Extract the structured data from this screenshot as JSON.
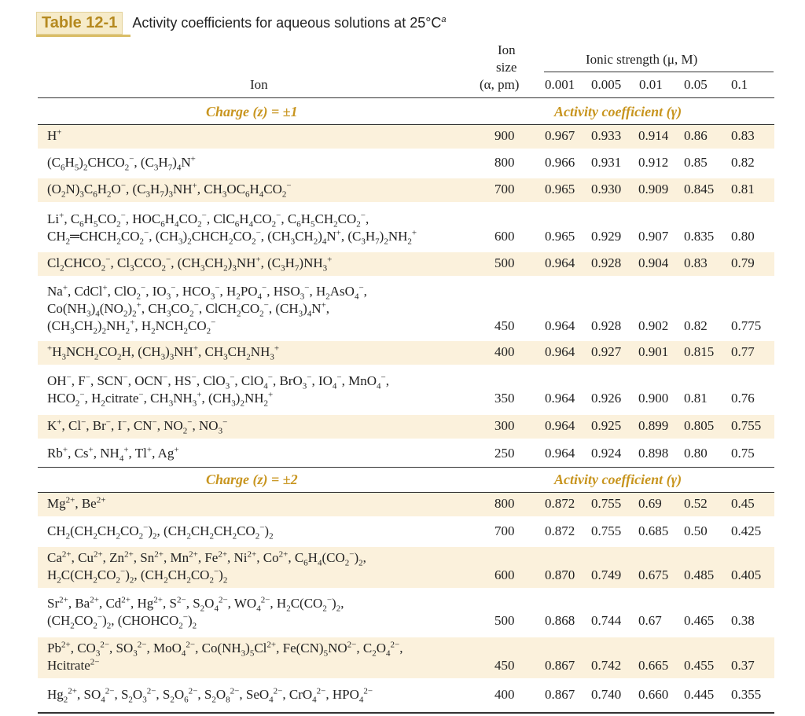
{
  "title": {
    "tag": "Table 12-1",
    "text": "Activity coefficients for aqueous solutions at 25°C",
    "footnote_mark": "a"
  },
  "header": {
    "ion_col": "Ion",
    "size_col_line1": "Ion",
    "size_col_line2": "size",
    "size_col_line3": "(α, pm)",
    "ionic_strength": "Ionic strength (μ, M)",
    "strengths": [
      "0.001",
      "0.005",
      "0.01",
      "0.05",
      "0.1"
    ]
  },
  "groups": [
    {
      "charge_label": "Charge (z) = ±1",
      "coef_label": "Activity coefficient (γ)",
      "rows": [
        {
          "ion_html": "H<sup>+</sup>",
          "size": "900",
          "values": [
            "0.967",
            "0.933",
            "0.914",
            "0.86",
            "0.83"
          ]
        },
        {
          "ion_html": "(C<sub>6</sub>H<sub>5</sub>)<sub>2</sub>CHCO<sub>2</sub><sup>−</sup>, (C<sub>3</sub>H<sub>7</sub>)<sub>4</sub>N<sup>+</sup>",
          "size": "800",
          "values": [
            "0.966",
            "0.931",
            "0.912",
            "0.85",
            "0.82"
          ]
        },
        {
          "ion_html": "(O<sub>2</sub>N)<sub>3</sub>C<sub>6</sub>H<sub>2</sub>O<sup>−</sup>, (C<sub>3</sub>H<sub>7</sub>)<sub>3</sub>NH<sup>+</sup>, CH<sub>3</sub>OC<sub>6</sub>H<sub>4</sub>CO<sub>2</sub><sup>−</sup>",
          "size": "700",
          "values": [
            "0.965",
            "0.930",
            "0.909",
            "0.845",
            "0.81"
          ]
        },
        {
          "ion_html": "Li<sup>+</sup>, C<sub>6</sub>H<sub>5</sub>CO<sub>2</sub><sup>−</sup>, HOC<sub>6</sub>H<sub>4</sub>CO<sub>2</sub><sup>−</sup>, ClC<sub>6</sub>H<sub>4</sub>CO<sub>2</sub><sup>−</sup>, C<sub>6</sub>H<sub>5</sub>CH<sub>2</sub>CO<sub>2</sub><sup>−</sup>,<br>CH<sub>2</sub>═CHCH<sub>2</sub>CO<sub>2</sub><sup>−</sup>, (CH<sub>3</sub>)<sub>2</sub>CHCH<sub>2</sub>CO<sub>2</sub><sup>−</sup>, (CH<sub>3</sub>CH<sub>2</sub>)<sub>4</sub>N<sup>+</sup>, (C<sub>3</sub>H<sub>7</sub>)<sub>2</sub>NH<sub>2</sub><sup>+</sup>",
          "size": "600",
          "values": [
            "0.965",
            "0.929",
            "0.907",
            "0.835",
            "0.80"
          ]
        },
        {
          "ion_html": "Cl<sub>2</sub>CHCO<sub>2</sub><sup>−</sup>, Cl<sub>3</sub>CCO<sub>2</sub><sup>−</sup>, (CH<sub>3</sub>CH<sub>2</sub>)<sub>3</sub>NH<sup>+</sup>, (C<sub>3</sub>H<sub>7</sub>)NH<sub>3</sub><sup>+</sup>",
          "size": "500",
          "values": [
            "0.964",
            "0.928",
            "0.904",
            "0.83",
            "0.79"
          ]
        },
        {
          "ion_html": "Na<sup>+</sup>, CdCl<sup>+</sup>, ClO<sub>2</sub><sup>−</sup>, IO<sub>3</sub><sup>−</sup>, HCO<sub>3</sub><sup>−</sup>, H<sub>2</sub>PO<sub>4</sub><sup>−</sup>, HSO<sub>3</sub><sup>−</sup>, H<sub>2</sub>AsO<sub>4</sub><sup>−</sup>,<br>Co(NH<sub>3</sub>)<sub>4</sub>(NO<sub>2</sub>)<sub>2</sub><sup>+</sup>, CH<sub>3</sub>CO<sub>2</sub><sup>−</sup>, ClCH<sub>2</sub>CO<sub>2</sub><sup>−</sup>, (CH<sub>3</sub>)<sub>4</sub>N<sup>+</sup>,<br>(CH<sub>3</sub>CH<sub>2</sub>)<sub>2</sub>NH<sub>2</sub><sup>+</sup>, H<sub>2</sub>NCH<sub>2</sub>CO<sub>2</sub><sup>−</sup>",
          "size": "450",
          "values": [
            "0.964",
            "0.928",
            "0.902",
            "0.82",
            "0.775"
          ]
        },
        {
          "ion_html": "<sup>+</sup>H<sub>3</sub>NCH<sub>2</sub>CO<sub>2</sub>H, (CH<sub>3</sub>)<sub>3</sub>NH<sup>+</sup>, CH<sub>3</sub>CH<sub>2</sub>NH<sub>3</sub><sup>+</sup>",
          "size": "400",
          "values": [
            "0.964",
            "0.927",
            "0.901",
            "0.815",
            "0.77"
          ]
        },
        {
          "ion_html": "OH<sup>−</sup>, F<sup>−</sup>, SCN<sup>−</sup>, OCN<sup>−</sup>, HS<sup>−</sup>, ClO<sub>3</sub><sup>−</sup>, ClO<sub>4</sub><sup>−</sup>, BrO<sub>3</sub><sup>−</sup>, IO<sub>4</sub><sup>−</sup>, MnO<sub>4</sub><sup>−</sup>,<br>HCO<sub>2</sub><sup>−</sup>, H<sub>2</sub>citrate<sup>−</sup>, CH<sub>3</sub>NH<sub>3</sub><sup>+</sup>, (CH<sub>3</sub>)<sub>2</sub>NH<sub>2</sub><sup>+</sup>",
          "size": "350",
          "values": [
            "0.964",
            "0.926",
            "0.900",
            "0.81",
            "0.76"
          ]
        },
        {
          "ion_html": "K<sup>+</sup>, Cl<sup>−</sup>, Br<sup>−</sup>, I<sup>−</sup>, CN<sup>−</sup>, NO<sub>2</sub><sup>−</sup>, NO<sub>3</sub><sup>−</sup>",
          "size": "300",
          "values": [
            "0.964",
            "0.925",
            "0.899",
            "0.805",
            "0.755"
          ]
        },
        {
          "ion_html": "Rb<sup>+</sup>, Cs<sup>+</sup>, NH<sub>4</sub><sup>+</sup>, Tl<sup>+</sup>, Ag<sup>+</sup>",
          "size": "250",
          "values": [
            "0.964",
            "0.924",
            "0.898",
            "0.80",
            "0.75"
          ]
        }
      ]
    },
    {
      "charge_label": "Charge (z) = ±2",
      "coef_label": "Activity coefficient (γ)",
      "rows": [
        {
          "ion_html": "Mg<sup>2+</sup>, Be<sup>2+</sup>",
          "size": "800",
          "values": [
            "0.872",
            "0.755",
            "0.69",
            "0.52",
            "0.45"
          ]
        },
        {
          "ion_html": "CH<sub>2</sub>(CH<sub>2</sub>CH<sub>2</sub>CO<sub>2</sub><sup>−</sup>)<sub>2</sub>, (CH<sub>2</sub>CH<sub>2</sub>CH<sub>2</sub>CO<sub>2</sub><sup>−</sup>)<sub>2</sub>",
          "size": "700",
          "values": [
            "0.872",
            "0.755",
            "0.685",
            "0.50",
            "0.425"
          ]
        },
        {
          "ion_html": "Ca<sup>2+</sup>, Cu<sup>2+</sup>, Zn<sup>2+</sup>, Sn<sup>2+</sup>, Mn<sup>2+</sup>, Fe<sup>2+</sup>, Ni<sup>2+</sup>, Co<sup>2+</sup>, C<sub>6</sub>H<sub>4</sub>(CO<sub>2</sub><sup>−</sup>)<sub>2</sub>,<br>H<sub>2</sub>C(CH<sub>2</sub>CO<sub>2</sub><sup>−</sup>)<sub>2</sub>, (CH<sub>2</sub>CH<sub>2</sub>CO<sub>2</sub><sup>−</sup>)<sub>2</sub>",
          "size": "600",
          "values": [
            "0.870",
            "0.749",
            "0.675",
            "0.485",
            "0.405"
          ]
        },
        {
          "ion_html": "Sr<sup>2+</sup>, Ba<sup>2+</sup>, Cd<sup>2+</sup>, Hg<sup>2+</sup>, S<sup>2−</sup>, S<sub>2</sub>O<sub>4</sub><sup>2−</sup>, WO<sub>4</sub><sup>2−</sup>, H<sub>2</sub>C(CO<sub>2</sub><sup>−</sup>)<sub>2</sub>,<br>(CH<sub>2</sub>CO<sub>2</sub><sup>−</sup>)<sub>2</sub>, (CHOHCO<sub>2</sub><sup>−</sup>)<sub>2</sub>",
          "size": "500",
          "values": [
            "0.868",
            "0.744",
            "0.67",
            "0.465",
            "0.38"
          ]
        },
        {
          "ion_html": "Pb<sup>2+</sup>, CO<sub>3</sub><sup>2−</sup>, SO<sub>3</sub><sup>2−</sup>, MoO<sub>4</sub><sup>2−</sup>, Co(NH<sub>3</sub>)<sub>5</sub>Cl<sup>2+</sup>, Fe(CN)<sub>5</sub>NO<sup>2−</sup>, C<sub>2</sub>O<sub>4</sub><sup>2−</sup>,<br>Hcitrate<sup>2−</sup>",
          "size": "450",
          "values": [
            "0.867",
            "0.742",
            "0.665",
            "0.455",
            "0.37"
          ]
        },
        {
          "ion_html": "Hg<sub>2</sub><sup>2+</sup>, SO<sub>4</sub><sup>2−</sup>, S<sub>2</sub>O<sub>3</sub><sup>2−</sup>, S<sub>2</sub>O<sub>6</sub><sup>2−</sup>, S<sub>2</sub>O<sub>8</sub><sup>2−</sup>, SeO<sub>4</sub><sup>2−</sup>, CrO<sub>4</sub><sup>2−</sup>, HPO<sub>4</sub><sup>2−</sup>",
          "size": "400",
          "values": [
            "0.867",
            "0.740",
            "0.660",
            "0.445",
            "0.355"
          ]
        }
      ]
    }
  ]
}
